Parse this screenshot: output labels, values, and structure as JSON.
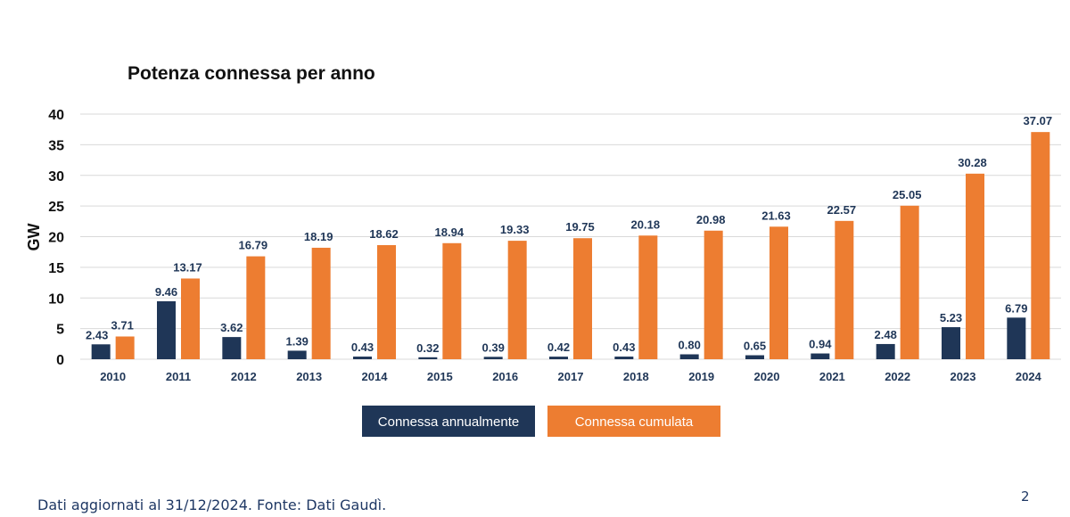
{
  "chart_data": {
    "type": "bar",
    "title": "Potenza connessa per anno",
    "ylabel": "GW",
    "xlabel": "",
    "ylim": [
      0,
      40
    ],
    "yticks": [
      0,
      5,
      10,
      15,
      20,
      25,
      30,
      35,
      40
    ],
    "grid": true,
    "legend": "bottom-center",
    "categories": [
      "2010",
      "2011",
      "2012",
      "2013",
      "2014",
      "2015",
      "2016",
      "2017",
      "2018",
      "2019",
      "2020",
      "2021",
      "2022",
      "2023",
      "2024"
    ],
    "series": [
      {
        "name": "Connessa annualmente",
        "color": "#1f3657",
        "values": [
          2.43,
          9.46,
          3.62,
          1.39,
          0.43,
          0.32,
          0.39,
          0.42,
          0.43,
          0.8,
          0.65,
          0.94,
          2.48,
          5.23,
          6.79
        ],
        "labels": [
          "2.43",
          "9.46",
          "3.62",
          "1.39",
          "0.43",
          "0.32",
          "0.39",
          "0.42",
          "0.43",
          "0.80",
          "0.65",
          "0.94",
          "2.48",
          "5.23",
          "6.79"
        ]
      },
      {
        "name": "Connessa cumulata",
        "color": "#ed7d31",
        "values": [
          3.71,
          13.17,
          16.79,
          18.19,
          18.62,
          18.94,
          19.33,
          19.75,
          20.18,
          20.98,
          21.63,
          22.57,
          25.05,
          30.28,
          37.07
        ],
        "labels": [
          "3.71",
          "13.17",
          "16.79",
          "18.19",
          "18.62",
          "18.94",
          "19.33",
          "19.75",
          "20.18",
          "20.98",
          "21.63",
          "22.57",
          "25.05",
          "30.28",
          "37.07"
        ]
      }
    ]
  },
  "footer": {
    "source_note": "Dati aggiornati al 31/12/2024. Fonte: Dati Gaudì.",
    "page_number": "2"
  }
}
